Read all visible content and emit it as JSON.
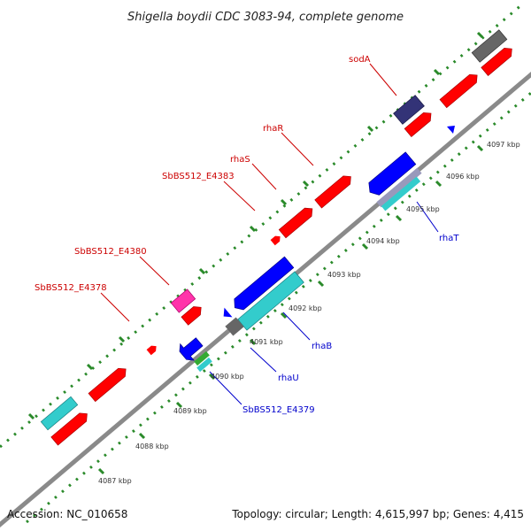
{
  "title": "Shigella boydii CDC 3083-94, complete genome",
  "footer": {
    "accession": "Accession: NC_010658",
    "summary": "Topology: circular; Length: 4,615,997 bp; Genes: 4,415"
  },
  "kbp_labels": [
    "4087 kbp",
    "4088 kbp",
    "4089 kbp",
    "4090 kbp",
    "4091 kbp",
    "4092 kbp",
    "4093 kbp",
    "4094 kbp",
    "4095 kbp",
    "4096 kbp",
    "4097 kbp"
  ],
  "genes_forward": [
    "sodA",
    "rhaR",
    "rhaS",
    "SbBS512_E4383",
    "SbBS512_E4380",
    "SbBS512_E4378"
  ],
  "genes_reverse": [
    "rhaT",
    "rhaB",
    "rhaU",
    "SbBS512_E4379"
  ],
  "colors": {
    "backbone": "#888888",
    "tick_green": "#2a8a2a",
    "forward_cds": "#ff0000",
    "reverse_cds": "#0000ff",
    "cyan_feature": "#33cccc",
    "gray_feature": "#666666",
    "magenta_feature": "#ff33aa",
    "navy_feature": "#333377",
    "green_feature": "#33aa33",
    "forward_label": "#cc0000",
    "reverse_label": "#0000cc"
  }
}
